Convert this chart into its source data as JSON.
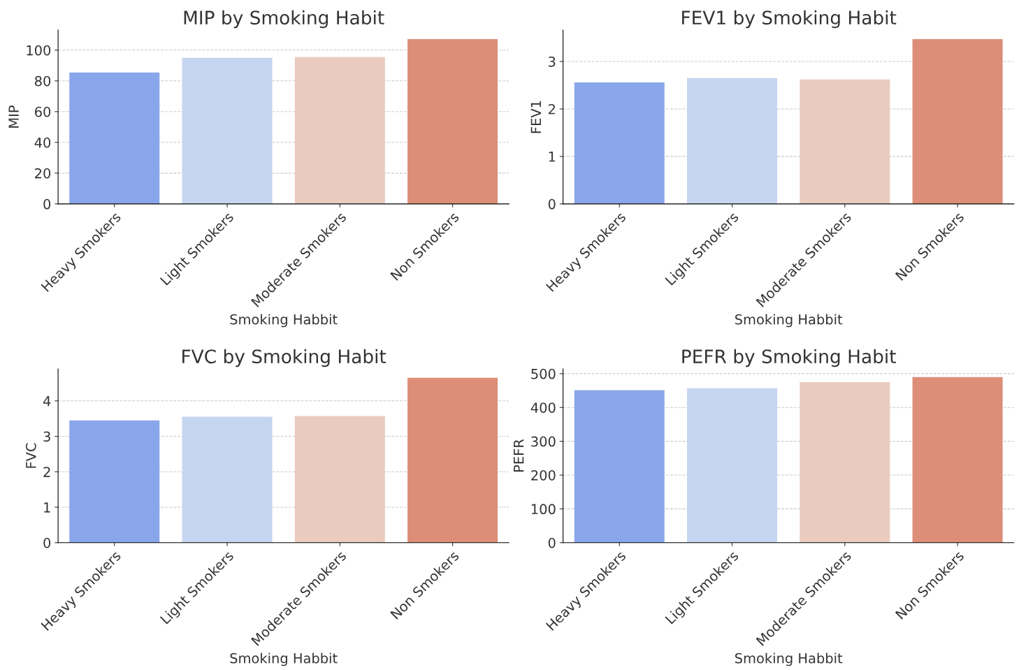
{
  "chart_data": [
    {
      "type": "bar",
      "title": "MIP by Smoking Habit",
      "xlabel": "Smoking Habbit",
      "ylabel": "MIP",
      "categories": [
        "Heavy Smokers",
        "Light Smokers",
        "Moderate Smokers",
        "Non Smokers"
      ],
      "values": [
        85.5,
        95,
        95.5,
        107.2
      ],
      "colors": [
        "#8aa6ea",
        "#c6d5f0",
        "#eacbbd",
        "#dc8e77"
      ],
      "ylim": [
        0,
        113
      ],
      "yticks": [
        0,
        20,
        40,
        60,
        80,
        100
      ],
      "grid": "y"
    },
    {
      "type": "bar",
      "title": "FEV1 by Smoking Habit",
      "xlabel": "Smoking Habbit",
      "ylabel": "FEV1",
      "categories": [
        "Heavy Smokers",
        "Light Smokers",
        "Moderate Smokers",
        "Non Smokers"
      ],
      "values": [
        2.56,
        2.65,
        2.62,
        3.47
      ],
      "colors": [
        "#8aa6ea",
        "#c6d5f0",
        "#eacbbd",
        "#dc8e77"
      ],
      "ylim": [
        0,
        3.66
      ],
      "yticks": [
        0,
        1,
        2,
        3
      ],
      "grid": "y"
    },
    {
      "type": "bar",
      "title": "FVC by Smoking Habit",
      "xlabel": "Smoking Habbit",
      "ylabel": "FVC",
      "categories": [
        "Heavy Smokers",
        "Light Smokers",
        "Moderate Smokers",
        "Non Smokers"
      ],
      "values": [
        3.45,
        3.55,
        3.57,
        4.65
      ],
      "colors": [
        "#8aa6ea",
        "#c6d5f0",
        "#eacbbd",
        "#dc8e77"
      ],
      "ylim": [
        0,
        4.9
      ],
      "yticks": [
        0,
        1,
        2,
        3,
        4
      ],
      "grid": "y"
    },
    {
      "type": "bar",
      "title": "PEFR by Smoking Habit",
      "xlabel": "Smoking Habbit",
      "ylabel": "PEFR",
      "categories": [
        "Heavy Smokers",
        "Light Smokers",
        "Moderate Smokers",
        "Non Smokers"
      ],
      "values": [
        451,
        457,
        475,
        490
      ],
      "colors": [
        "#8aa6ea",
        "#c6d5f0",
        "#eacbbd",
        "#dc8e77"
      ],
      "ylim": [
        0,
        514
      ],
      "yticks": [
        0,
        100,
        200,
        300,
        400,
        500
      ],
      "grid": "y"
    }
  ]
}
